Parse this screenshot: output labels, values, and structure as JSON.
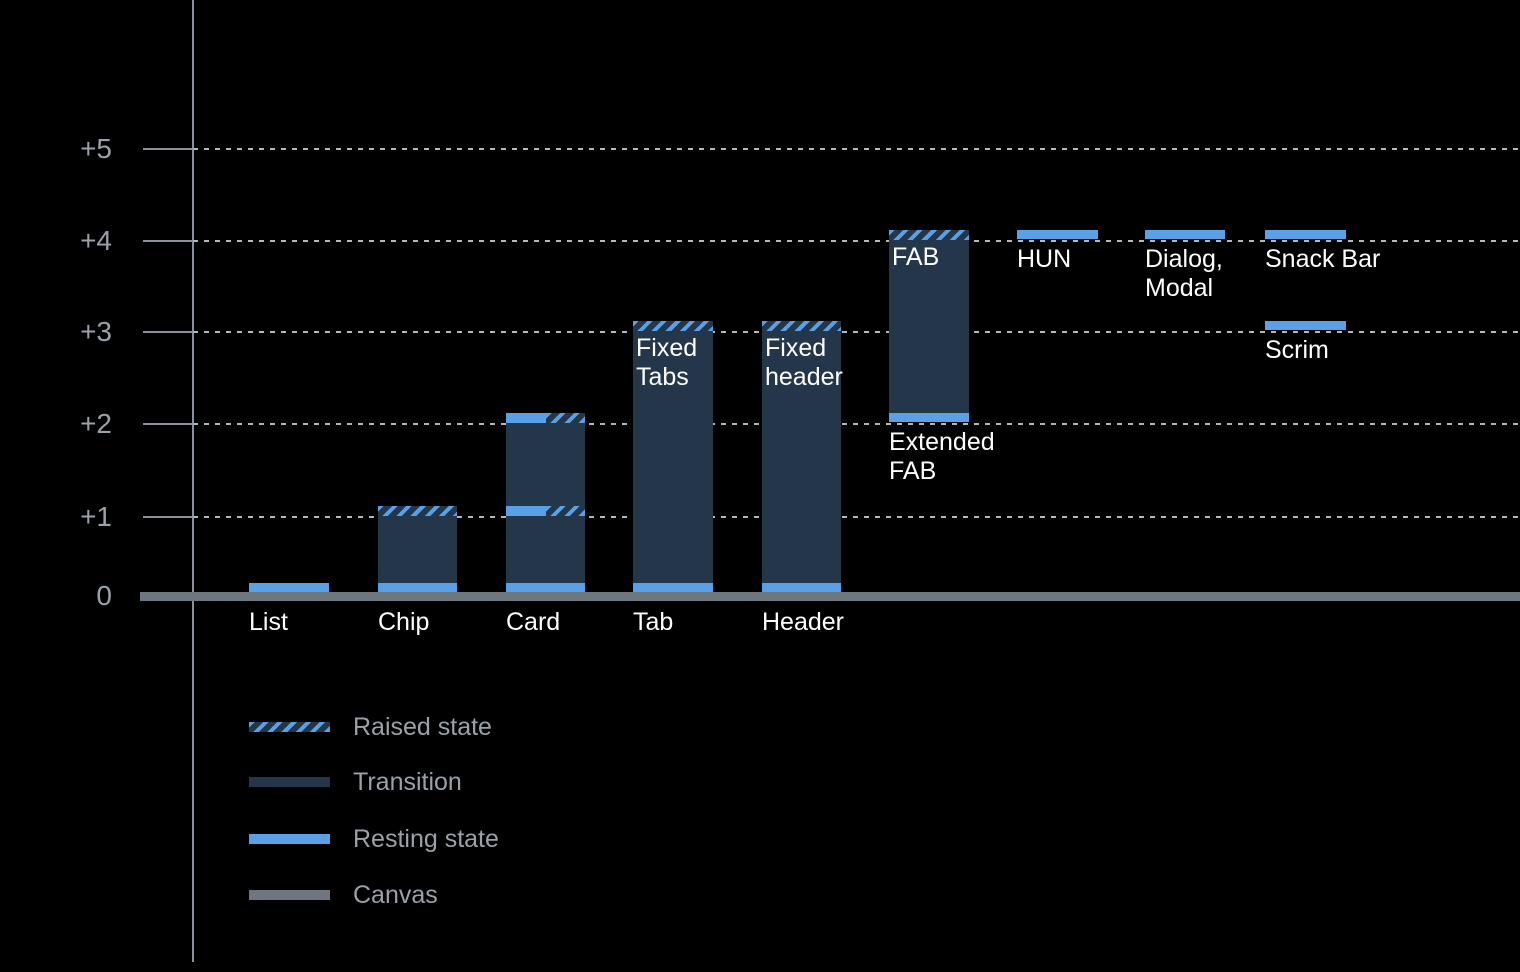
{
  "chart_data": {
    "type": "bar",
    "title": "",
    "description": "Material elevation diagram: component resting and raised elevations above the canvas",
    "y_axis": {
      "tick_labels": [
        "+5",
        "+4",
        "+3",
        "+2",
        "+1",
        "0"
      ],
      "tick_values": [
        5,
        4,
        3,
        2,
        1,
        0
      ],
      "ylim": [
        0,
        5.6
      ],
      "grid": "dotted horizontal gridlines at +1 through +5, solid canvas baseline at 0"
    },
    "bars": [
      {
        "name": "List",
        "label": "List",
        "label_position": "below-baseline",
        "segments": [
          {
            "kind": "resting",
            "elevation": 0
          }
        ]
      },
      {
        "name": "Chip",
        "label": "Chip",
        "label_position": "below-baseline",
        "segments": [
          {
            "kind": "raised",
            "elevation": 1
          },
          {
            "kind": "transition",
            "from": 0,
            "to": 1
          },
          {
            "kind": "resting",
            "elevation": 0
          }
        ]
      },
      {
        "name": "Card",
        "label": "Card",
        "label_position": "below-baseline",
        "segments": [
          {
            "kind": "resting-and-raised",
            "elevation": 2
          },
          {
            "kind": "transition",
            "from": 1,
            "to": 2
          },
          {
            "kind": "resting-and-raised",
            "elevation": 1
          },
          {
            "kind": "transition",
            "from": 0,
            "to": 1
          },
          {
            "kind": "resting",
            "elevation": 0
          }
        ]
      },
      {
        "name": "Tab",
        "label": "Tab",
        "label_position": "below-baseline",
        "inner_label": "Fixed\nTabs",
        "segments": [
          {
            "kind": "raised",
            "elevation": 3
          },
          {
            "kind": "transition",
            "from": 0,
            "to": 3
          },
          {
            "kind": "resting",
            "elevation": 0
          }
        ]
      },
      {
        "name": "Header",
        "label": "Header",
        "label_position": "below-baseline",
        "inner_label": "Fixed\nheader",
        "segments": [
          {
            "kind": "raised",
            "elevation": 3
          },
          {
            "kind": "transition",
            "from": 0,
            "to": 3
          },
          {
            "kind": "resting",
            "elevation": 0
          }
        ]
      },
      {
        "name": "FAB",
        "label": "Extended\nFAB",
        "label_position": "below-bar",
        "inner_label": "FAB",
        "segments": [
          {
            "kind": "raised",
            "elevation": 4
          },
          {
            "kind": "transition",
            "from": 2,
            "to": 4
          },
          {
            "kind": "resting",
            "elevation": 2
          }
        ]
      },
      {
        "name": "HUN",
        "label": "HUN",
        "label_position": "below-bar",
        "segments": [
          {
            "kind": "resting",
            "elevation": 4
          }
        ]
      },
      {
        "name": "Dialog, Modal",
        "label": "Dialog,\nModal",
        "label_position": "below-bar",
        "segments": [
          {
            "kind": "resting",
            "elevation": 4
          }
        ]
      },
      {
        "name": "Snack Bar",
        "label": "Snack Bar",
        "label_position": "below-bar",
        "segments": [
          {
            "kind": "resting",
            "elevation": 4
          }
        ]
      },
      {
        "name": "Scrim",
        "label": "Scrim",
        "label_position": "below-bar",
        "segments": [
          {
            "kind": "resting",
            "elevation": 3
          }
        ]
      }
    ],
    "legend": {
      "position": "bottom-left",
      "items": [
        {
          "label": "Raised state",
          "swatch": "hatched-blue-on-navy"
        },
        {
          "label": "Transition",
          "swatch": "solid-navy"
        },
        {
          "label": "Resting state",
          "swatch": "solid-blue"
        },
        {
          "label": "Canvas",
          "swatch": "solid-gray"
        }
      ]
    },
    "colors": {
      "background": "#000000",
      "resting_blue": "#5AA0E6",
      "transition_navy": "#24364A",
      "canvas_gray": "#6E7680",
      "axis_gray": "#8B9199",
      "gridline_gray": "#B4B8BD",
      "label_white": "#FFFFFF",
      "muted_text_gray": "#9BA1A8"
    }
  }
}
